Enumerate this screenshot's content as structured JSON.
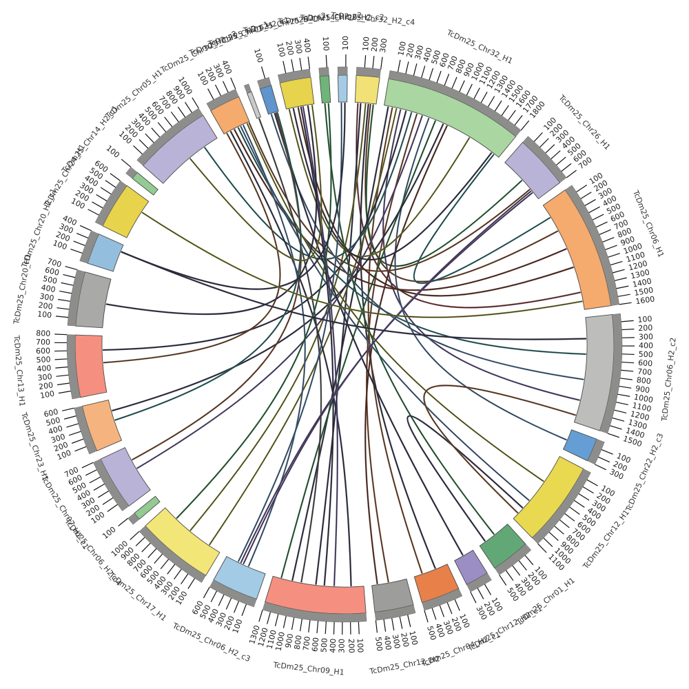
{
  "chart_data": {
    "type": "circos",
    "title": "",
    "tick_interval": 100,
    "ring": {
      "band_inner_radius": 352,
      "band_outer_radius": 391,
      "tick_band_color": "#8d8d8b",
      "band_stroke": "#4a4a4a",
      "tick_color": "#111111",
      "tick_label_color": "#1a1a1a",
      "name_label_color": "#333333",
      "gap_degrees": 1.9,
      "start_degrees": 2.5
    },
    "segments": [
      {
        "name": "TcDm25_Chr32_H2_c4",
        "length": 300,
        "color": "#f2e176"
      },
      {
        "name": "TcDm25_Chr32_H1",
        "length": 1800,
        "color": "#a9d6a1"
      },
      {
        "name": "TcDm25_Chr26_H1",
        "length": 700,
        "color": "#b9b3d7"
      },
      {
        "name": "TcDm25_Chr06_H1",
        "length": 1600,
        "color": "#f5aa6e"
      },
      {
        "name": "TcDm25_Chr06_H2_c2",
        "length": 1500,
        "color": "#bdbdbb"
      },
      {
        "name": "TcDm25_Chr22_H2_c3",
        "length": 300,
        "color": "#659ed4"
      },
      {
        "name": "TcDm25_Chr12_H1",
        "length": 1100,
        "color": "#e8d951"
      },
      {
        "name": "TcDm25_Chr01_H1",
        "length": 500,
        "color": "#62a877"
      },
      {
        "name": "TcDm25_Chr12_H2_c1",
        "length": 300,
        "color": "#9b8ec4"
      },
      {
        "name": "TcDm25_Chr04_H2_c1",
        "length": 500,
        "color": "#e8804a"
      },
      {
        "name": "TcDm25_Chr12_H2",
        "length": 500,
        "color": "#9d9d9b"
      },
      {
        "name": "TcDm25_Chr09_H1",
        "length": 1300,
        "color": "#f59080"
      },
      {
        "name": "TcDm25_Chr06_H2_c3",
        "length": 600,
        "color": "#a3cbe5"
      },
      {
        "name": "TcDm25_Chr17_H1",
        "length": 1000,
        "color": "#f3e678"
      },
      {
        "name": "TcDm25_Chr06_H2_c4",
        "length": 100,
        "color": "#93cb93"
      },
      {
        "name": "TcDm25_Chr07_H2_c1",
        "length": 700,
        "color": "#b9b3d7"
      },
      {
        "name": "TcDm25_Chr23_H1",
        "length": 600,
        "color": "#f5b47f"
      },
      {
        "name": "TcDm25_Chr13_H1",
        "length": 800,
        "color": "#f59080"
      },
      {
        "name": "TcDm25_Chr20_H1",
        "length": 700,
        "color": "#a9a9a7"
      },
      {
        "name": "TcDm25_Chr20_H2_c1",
        "length": 400,
        "color": "#94bedd"
      },
      {
        "name": "TcDm25_Chr24_H1",
        "length": 600,
        "color": "#e8d44c"
      },
      {
        "name": "TcDm25_Chr14_H2_c1",
        "length": 100,
        "color": "#93cb93"
      },
      {
        "name": "TcDm25_Chr05_H1",
        "length": 1000,
        "color": "#b9b3d7"
      },
      {
        "name": "TcDm25_Chr30_H2_c2",
        "length": 400,
        "color": "#f5aa6e"
      },
      {
        "name": "TcDm25_Chr25_H2_c1",
        "length": 60,
        "color": "#c9c9c7"
      },
      {
        "name": "TcDm25_Chr01_H2_c1",
        "length": 150,
        "color": "#5f94cc"
      },
      {
        "name": "TcDm25_Chr25_H2_c2",
        "length": 400,
        "color": "#e8d44c"
      },
      {
        "name": "TcDm25_Chr14_H2_c2",
        "length": 120,
        "color": "#6fb579"
      },
      {
        "name": "TcDm25_Chr20_H2_c2",
        "length": 120,
        "color": "#a3cbe5"
      }
    ],
    "links": [
      {
        "s": [
          "TcDm25_Chr32_H2_c4",
          40
        ],
        "t": [
          "TcDm25_Chr06_H1",
          1350
        ],
        "c": "#8a4a4a"
      },
      {
        "s": [
          "TcDm25_Chr32_H2_c4",
          80
        ],
        "t": [
          "TcDm25_Chr09_H1",
          680
        ],
        "c": "#3a3a52"
      },
      {
        "s": [
          "TcDm25_Chr32_H2_c4",
          150
        ],
        "t": [
          "TcDm25_Chr17_H1",
          520
        ],
        "c": "#8a8a3a"
      },
      {
        "s": [
          "TcDm25_Chr32_H2_c4",
          190
        ],
        "t": [
          "TcDm25_Chr04_H2_c1",
          180
        ],
        "c": "#3a3a52"
      },
      {
        "s": [
          "TcDm25_Chr32_H2_c4",
          220
        ],
        "t": [
          "TcDm25_Chr06_H1",
          420
        ],
        "c": "#8a5a3a"
      },
      {
        "s": [
          "TcDm25_Chr32_H2_c4",
          260
        ],
        "t": [
          "TcDm25_Chr26_H1",
          350
        ],
        "c": "#3a7a4a"
      },
      {
        "s": [
          "TcDm25_Chr32_H1",
          60
        ],
        "t": [
          "TcDm25_Chr09_H1",
          1020
        ],
        "c": "#3a3a52"
      },
      {
        "s": [
          "TcDm25_Chr32_H1",
          120
        ],
        "t": [
          "TcDm25_Chr04_H2_c1",
          380
        ],
        "c": "#8a5a3a"
      },
      {
        "s": [
          "TcDm25_Chr32_H1",
          180
        ],
        "t": [
          "TcDm25_Chr17_H1",
          180
        ],
        "c": "#8a8a3a"
      },
      {
        "s": [
          "TcDm25_Chr32_H1",
          240
        ],
        "t": [
          "TcDm25_Chr06_H2_c2",
          1180
        ],
        "c": "#6a5a8a"
      },
      {
        "s": [
          "TcDm25_Chr32_H1",
          320
        ],
        "t": [
          "TcDm25_Chr13_H1",
          600
        ],
        "c": "#3a3a52"
      },
      {
        "s": [
          "TcDm25_Chr32_H1",
          400
        ],
        "t": [
          "TcDm25_Chr05_H1",
          780
        ],
        "c": "#3a7a7a"
      },
      {
        "s": [
          "TcDm25_Chr32_H1",
          480
        ],
        "t": [
          "TcDm25_Chr12_H2",
          260
        ],
        "c": "#8a5a3a"
      },
      {
        "s": [
          "TcDm25_Chr32_H1",
          560
        ],
        "t": [
          "TcDm25_Chr07_H2_c1",
          360
        ],
        "c": "#6a5a8a"
      },
      {
        "s": [
          "TcDm25_Chr32_H1",
          660
        ],
        "t": [
          "TcDm25_Chr22_H2_c3",
          160
        ],
        "c": "#5a7a9a"
      },
      {
        "s": [
          "TcDm25_Chr32_H1",
          760
        ],
        "t": [
          "TcDm25_Chr09_H1",
          1180
        ],
        "c": "#3a7a4a"
      },
      {
        "s": [
          "TcDm25_Chr32_H1",
          880
        ],
        "t": [
          "TcDm25_Chr23_H1",
          440
        ],
        "c": "#3a3a52"
      },
      {
        "s": [
          "TcDm25_Chr32_H1",
          940
        ],
        "t": [
          "TcDm25_Chr12_H2",
          420
        ],
        "c": "#6a3a2a"
      },
      {
        "s": [
          "TcDm25_Chr32_H1",
          1720
        ],
        "t": [
          "TcDm25_Chr06_H1",
          200
        ],
        "c": "#3a7a7a"
      },
      {
        "s": [
          "TcDm25_Chr30_H2_c2",
          40
        ],
        "t": [
          "TcDm25_Chr13_H1",
          420
        ],
        "c": "#8a5a3a"
      },
      {
        "s": [
          "TcDm25_Chr30_H2_c2",
          100
        ],
        "t": [
          "TcDm25_Chr09_H1",
          180
        ],
        "c": "#3a3a52"
      },
      {
        "s": [
          "TcDm25_Chr30_H2_c2",
          160
        ],
        "t": [
          "TcDm25_Chr06_H1",
          700
        ],
        "c": "#6a3a2a"
      },
      {
        "s": [
          "TcDm25_Chr30_H2_c2",
          220
        ],
        "t": [
          "TcDm25_Chr06_H2_c2",
          520
        ],
        "c": "#3a7a7a"
      },
      {
        "s": [
          "TcDm25_Chr30_H2_c2",
          260
        ],
        "t": [
          "TcDm25_Chr12_H1",
          760
        ],
        "c": "#5a7a9a"
      },
      {
        "s": [
          "TcDm25_Chr30_H2_c2",
          300
        ],
        "t": [
          "TcDm25_Chr06_H2_c3",
          260
        ],
        "c": "#5a7a9a"
      },
      {
        "s": [
          "TcDm25_Chr30_H2_c2",
          360
        ],
        "t": [
          "TcDm25_Chr12_H1",
          420
        ],
        "c": "#8a8a3a"
      },
      {
        "s": [
          "TcDm25_Chr30_H2_c2",
          390
        ],
        "t": [
          "TcDm25_Chr26_H1",
          520
        ],
        "c": "#8a5a3a"
      },
      {
        "s": [
          "TcDm25_Chr25_H2_c1",
          30
        ],
        "t": [
          "TcDm25_Chr09_H1",
          890
        ],
        "c": "#5a5a5a"
      },
      {
        "s": [
          "TcDm25_Chr01_H2_c1",
          40
        ],
        "t": [
          "TcDm25_Chr06_H2_c2",
          880
        ],
        "c": "#5a7a9a"
      },
      {
        "s": [
          "TcDm25_Chr01_H2_c1",
          90
        ],
        "t": [
          "TcDm25_Chr12_H2_c1",
          160
        ],
        "c": "#3a3a52"
      },
      {
        "s": [
          "TcDm25_Chr01_H2_c1",
          110
        ],
        "t": [
          "TcDm25_Chr07_H2_c1",
          500
        ],
        "c": "#8a5a3a"
      },
      {
        "s": [
          "TcDm25_Chr01_H2_c1",
          130
        ],
        "t": [
          "TcDm25_Chr23_H1",
          300
        ],
        "c": "#3a7a7a"
      },
      {
        "s": [
          "TcDm25_Chr25_H2_c2",
          40
        ],
        "t": [
          "TcDm25_Chr32_H1",
          1300
        ],
        "c": "#8a8a3a"
      },
      {
        "s": [
          "TcDm25_Chr25_H2_c2",
          100
        ],
        "t": [
          "TcDm25_Chr32_H1",
          1680
        ],
        "c": "#3a3a52"
      },
      {
        "s": [
          "TcDm25_Chr25_H2_c2",
          170
        ],
        "t": [
          "TcDm25_Chr06_H1",
          980
        ],
        "c": "#6a3a2a"
      },
      {
        "s": [
          "TcDm25_Chr25_H2_c2",
          210
        ],
        "t": [
          "TcDm25_Chr09_H1",
          560
        ],
        "c": "#3a3a52"
      },
      {
        "s": [
          "TcDm25_Chr25_H2_c2",
          240
        ],
        "t": [
          "TcDm25_Chr09_H1",
          420
        ],
        "c": "#6a5a8a"
      },
      {
        "s": [
          "TcDm25_Chr25_H2_c2",
          310
        ],
        "t": [
          "TcDm25_Chr20_H1",
          340
        ],
        "c": "#3a3a52"
      },
      {
        "s": [
          "TcDm25_Chr25_H2_c2",
          370
        ],
        "t": [
          "TcDm25_Chr05_H1",
          520
        ],
        "c": "#8a8a3a"
      },
      {
        "s": [
          "TcDm25_Chr14_H2_c2",
          40
        ],
        "t": [
          "TcDm25_Chr01_H1",
          240
        ],
        "c": "#3a7a4a"
      },
      {
        "s": [
          "TcDm25_Chr14_H2_c2",
          90
        ],
        "t": [
          "TcDm25_Chr17_H1",
          780
        ],
        "c": "#3a7a4a"
      },
      {
        "s": [
          "TcDm25_Chr20_H2_c2",
          40
        ],
        "t": [
          "TcDm25_Chr06_H2_c3",
          420
        ],
        "c": "#5a7a9a"
      },
      {
        "s": [
          "TcDm25_Chr20_H2_c2",
          90
        ],
        "t": [
          "TcDm25_Chr20_H2_c1",
          300
        ],
        "c": "#3a3a52"
      },
      {
        "s": [
          "TcDm25_Chr26_H1",
          550
        ],
        "t": [
          "TcDm25_Chr06_H2_c3",
          340
        ],
        "c": "#6a5a8a"
      },
      {
        "s": [
          "TcDm25_Chr26_H1",
          580
        ],
        "t": [
          "TcDm25_Chr06_H2_c3",
          380
        ],
        "c": "#6a5a8a"
      },
      {
        "s": [
          "TcDm25_Chr20_H2_c1",
          300
        ],
        "t": [
          "TcDm25_Chr06_H2_c2",
          300
        ],
        "c": "#3a3a52"
      },
      {
        "s": [
          "TcDm25_Chr24_H1",
          420
        ],
        "t": [
          "TcDm25_Chr06_H1",
          1480
        ],
        "c": "#8a8a3a"
      },
      {
        "s": [
          "TcDm25_Chr01_H1",
          400
        ],
        "t": [
          "TcDm25_Chr12_H1",
          900
        ],
        "c": "#3a3a52"
      },
      {
        "s": [
          "TcDm25_Chr12_H1",
          1000
        ],
        "t": [
          "TcDm25_Chr06_H2_c2",
          1400
        ],
        "c": "#8a5a3a"
      }
    ]
  }
}
